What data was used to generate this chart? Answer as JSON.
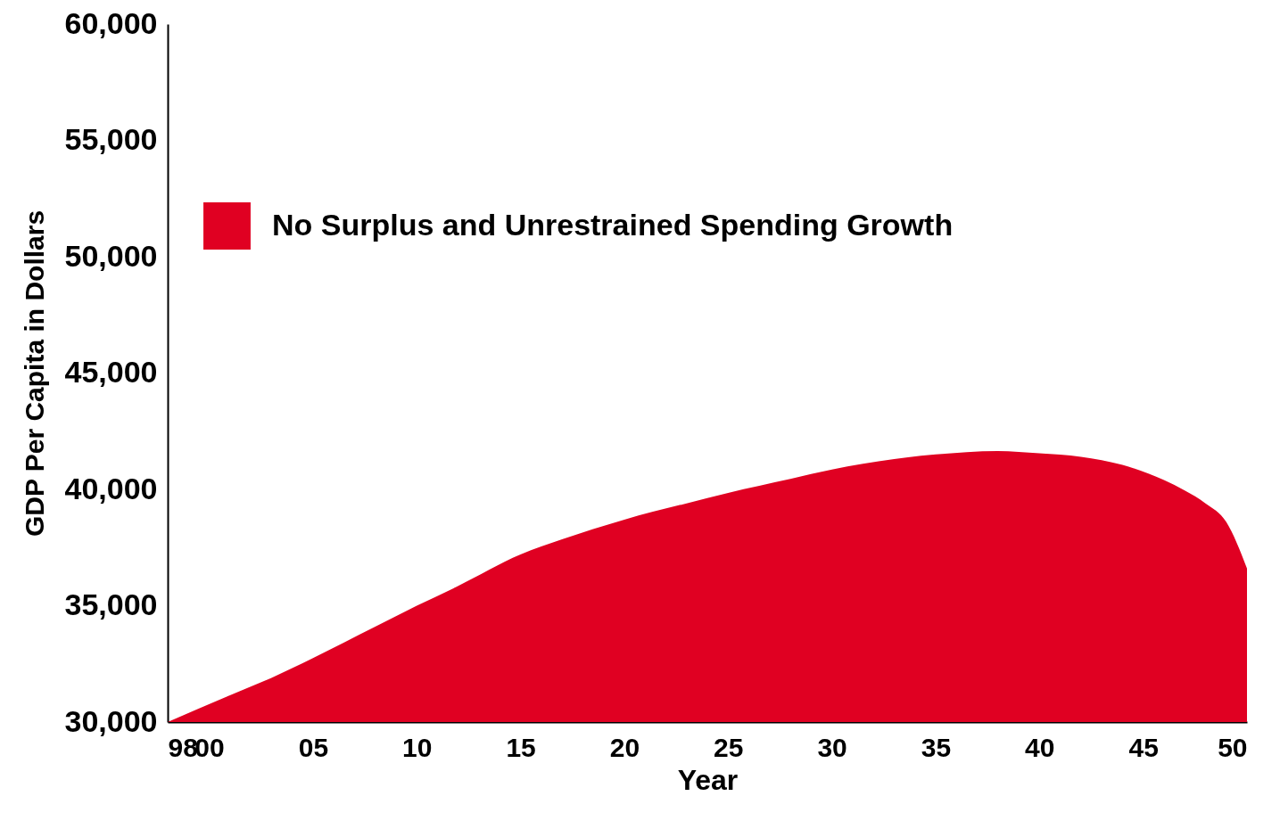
{
  "chart_data": {
    "type": "area",
    "xlabel": "Year",
    "ylabel": "GDP Per Capita in Dollars",
    "x": [
      1998,
      2001,
      2003,
      2005,
      2008,
      2010,
      2012,
      2015,
      2017,
      2020,
      2023,
      2025,
      2028,
      2030,
      2033,
      2035,
      2038,
      2040,
      2042,
      2044,
      2046,
      2047,
      2048,
      2049,
      2050
    ],
    "series": [
      {
        "name": "No Surplus and Unrestrained Spending Growth",
        "color": "#e00022",
        "values": [
          30000,
          31150,
          31900,
          32750,
          34100,
          35000,
          35850,
          37200,
          37850,
          38700,
          39400,
          39850,
          40450,
          40850,
          41300,
          41500,
          41650,
          41550,
          41400,
          41050,
          40400,
          39950,
          39400,
          38600,
          36600
        ]
      }
    ],
    "xlim": [
      1998,
      2050
    ],
    "xticks": [
      {
        "value": 1998,
        "label": "98"
      },
      {
        "value": 2000,
        "label": "00"
      },
      {
        "value": 2005,
        "label": "05"
      },
      {
        "value": 2010,
        "label": "10"
      },
      {
        "value": 2015,
        "label": "15"
      },
      {
        "value": 2020,
        "label": "20"
      },
      {
        "value": 2025,
        "label": "25"
      },
      {
        "value": 2030,
        "label": "30"
      },
      {
        "value": 2035,
        "label": "35"
      },
      {
        "value": 2040,
        "label": "40"
      },
      {
        "value": 2045,
        "label": "45"
      },
      {
        "value": 2050,
        "label": "50"
      }
    ],
    "ylim": [
      30000,
      60000
    ],
    "yticks": [
      {
        "value": 30000,
        "label": "30,000"
      },
      {
        "value": 35000,
        "label": "35,000"
      },
      {
        "value": 40000,
        "label": "40,000"
      },
      {
        "value": 45000,
        "label": "45,000"
      },
      {
        "value": 50000,
        "label": "50,000"
      },
      {
        "value": 55000,
        "label": "55,000"
      },
      {
        "value": 60000,
        "label": "60,000"
      }
    ],
    "grid": false,
    "legend": "top left"
  }
}
